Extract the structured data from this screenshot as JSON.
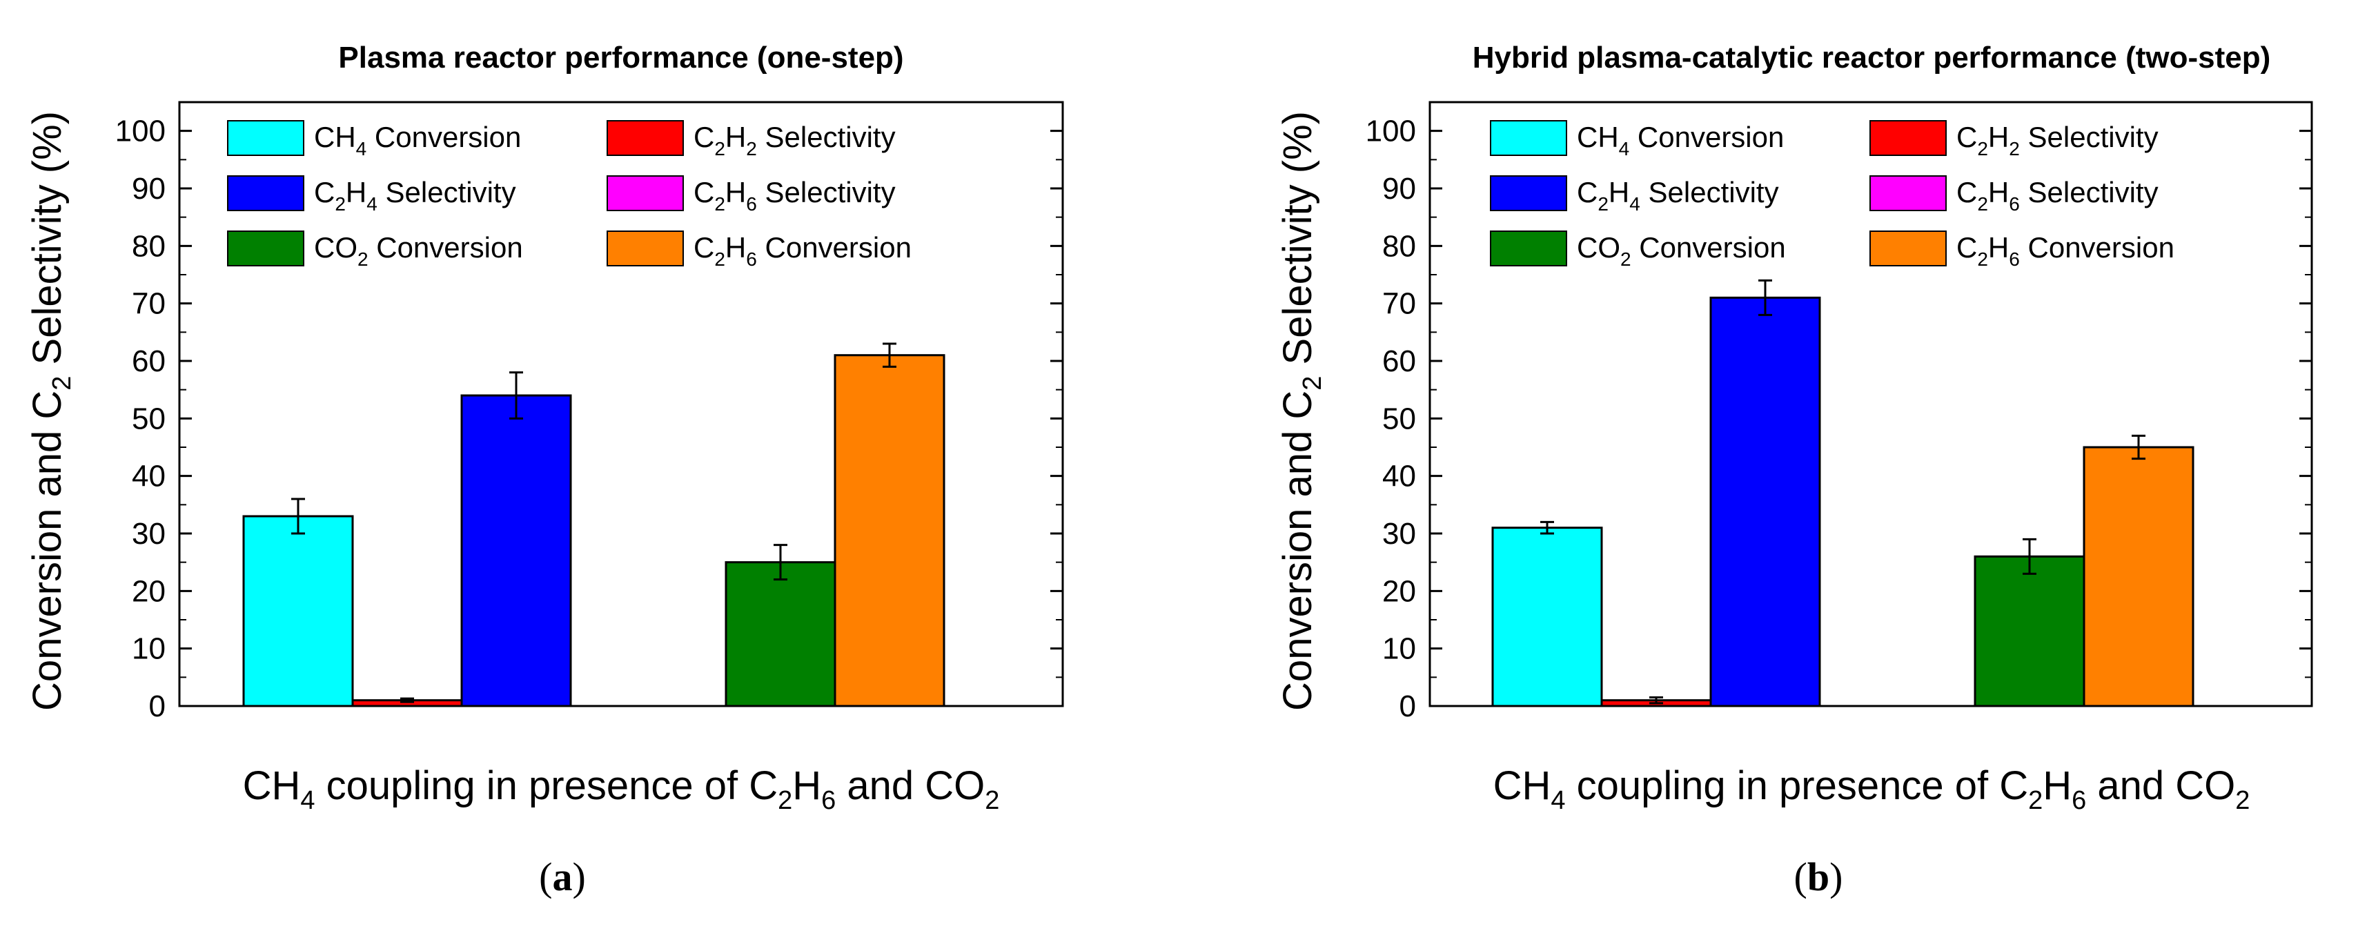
{
  "colors": {
    "CH4 Conversion": "#00ffff",
    "C2H2 Selectivity": "#ff0000",
    "C2H4 Selectivity": "#0000ff",
    "C2H6 Selectivity": "#ff00ff",
    "CO2 Conversion": "#008000",
    "C2H6 Conversion": "#ff8000"
  },
  "chart_data": [
    {
      "type": "bar",
      "panel_label": "(a)",
      "title": "Plasma reactor performance (one-step)",
      "ylabel": "Conversion and C2 Selectivity (%)",
      "xlabel": "CH4 coupling in presence of C2H6 and CO2",
      "ylim": [
        0,
        105
      ],
      "yticks": [
        0,
        10,
        20,
        30,
        40,
        50,
        60,
        70,
        80,
        90,
        100
      ],
      "legend": [
        "CH4 Conversion",
        "C2H2 Selectivity",
        "C2H4 Selectivity",
        "C2H6 Selectivity",
        "CO2 Conversion",
        "C2H6 Conversion"
      ],
      "series": [
        {
          "name": "CH4 Conversion",
          "value": 33,
          "error": 3
        },
        {
          "name": "C2H2 Selectivity",
          "value": 1,
          "error": 0.3
        },
        {
          "name": "C2H4 Selectivity",
          "value": 54,
          "error": 4
        },
        {
          "name": "C2H6 Selectivity",
          "value": 0,
          "error": 0
        },
        {
          "name": "CO2 Conversion",
          "value": 25,
          "error": 3
        },
        {
          "name": "C2H6 Conversion",
          "value": 61,
          "error": 2
        }
      ]
    },
    {
      "type": "bar",
      "panel_label": "(b)",
      "title": "Hybrid plasma-catalytic reactor performance (two-step)",
      "ylabel": "Conversion and C2 Selectivity (%)",
      "xlabel": "CH4 coupling in presence of C2H6 and CO2",
      "ylim": [
        0,
        105
      ],
      "yticks": [
        0,
        10,
        20,
        30,
        40,
        50,
        60,
        70,
        80,
        90,
        100
      ],
      "legend": [
        "CH4 Conversion",
        "C2H2 Selectivity",
        "C2H4 Selectivity",
        "C2H6 Selectivity",
        "CO2 Conversion",
        "C2H6 Conversion"
      ],
      "series": [
        {
          "name": "CH4 Conversion",
          "value": 31,
          "error": 1
        },
        {
          "name": "C2H2 Selectivity",
          "value": 1,
          "error": 0.5
        },
        {
          "name": "C2H4 Selectivity",
          "value": 71,
          "error": 3
        },
        {
          "name": "C2H6 Selectivity",
          "value": 0,
          "error": 0
        },
        {
          "name": "CO2 Conversion",
          "value": 26,
          "error": 3
        },
        {
          "name": "C2H6 Conversion",
          "value": 45,
          "error": 2
        }
      ]
    }
  ]
}
